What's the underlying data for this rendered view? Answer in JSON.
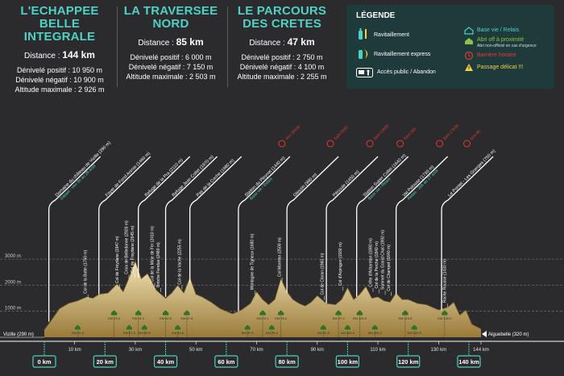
{
  "races": [
    {
      "title_1": "L'ECHAPPEE BELLE",
      "title_2": "INTEGRALE",
      "distance_label": "Distance :",
      "distance_value": "144 km",
      "d_pos": "Dénivelé positif : 10 950 m",
      "d_neg": "Dénivelé négatif : 10 900 m",
      "alt_max": "Altitude maximale : 2 926 m"
    },
    {
      "title_1": "LA TRAVERSEE",
      "title_2": "NORD",
      "distance_label": "Distance :",
      "distance_value": "85 km",
      "d_pos": "Dénivelé positif : 6 000 m",
      "d_neg": "Dénivelé négatif : 7 150 m",
      "alt_max": "Altitude maximale : 2 503 m"
    },
    {
      "title_1": "LE PARCOURS",
      "title_2": "DES CRETES",
      "distance_label": "Distance :",
      "distance_value": "47 km",
      "d_pos": "Dénivelé positif : 2 750 m",
      "d_neg": "Dénivelé négatif : 4 100 m",
      "alt_max": "Altitude maximale : 2 255 m"
    }
  ],
  "legend": {
    "title": "LÉGENDE",
    "ravitaillement": "Ravitaillement",
    "ravitaillement_express": "Ravitaillement express",
    "acces": "Accès public / Abandon",
    "base_vie": "Base vie / Relais",
    "abri": "Abri off à proximité",
    "abri_note": "Abri non-officiel en cas d'urgence",
    "barriere": "Barrière horaire",
    "passage": "Passage délicat !!!",
    "colors": {
      "teal": "#4fd1c5",
      "green": "#8bc34a",
      "red": "#e53935",
      "yellow": "#f5d142"
    }
  },
  "chart_data": {
    "type": "area",
    "title": "",
    "xlabel": "",
    "ylabel": "",
    "xlim": [
      0,
      144
    ],
    "ylim": [
      0,
      3300
    ],
    "y_ticks": [
      {
        "v": 1000,
        "label": "1000 m"
      },
      {
        "v": 2000,
        "label": "2000 m"
      },
      {
        "v": 3000,
        "label": "3000 m"
      }
    ],
    "x_ticks": [
      {
        "v": 10,
        "label": "10 km"
      },
      {
        "v": 30,
        "label": "30 km"
      },
      {
        "v": 50,
        "label": "50 km"
      },
      {
        "v": 70,
        "label": "70 km"
      },
      {
        "v": 90,
        "label": "90 km"
      },
      {
        "v": 110,
        "label": "110 km"
      },
      {
        "v": 130,
        "label": "130 km"
      },
      {
        "v": 144,
        "label": "144 km"
      }
    ],
    "km_markers": [
      {
        "v": 0,
        "label": "0 km"
      },
      {
        "v": 20,
        "label": "20 km"
      },
      {
        "v": 40,
        "label": "40 km"
      },
      {
        "v": 60,
        "label": "60 km"
      },
      {
        "v": 80,
        "label": "80 km"
      },
      {
        "v": 100,
        "label": "100 km"
      },
      {
        "v": 120,
        "label": "120 km"
      },
      {
        "v": 140,
        "label": "140 km"
      }
    ],
    "start_label": "Vizille (290 m)",
    "end_label": "Aiguebelle (320 m)",
    "profile": {
      "x": [
        0,
        2,
        5,
        8,
        11,
        14,
        16,
        18,
        21,
        24,
        26,
        28,
        30,
        32,
        34,
        37,
        40,
        42,
        44,
        46,
        48,
        50,
        52,
        55,
        58,
        62,
        65,
        68,
        70,
        72,
        74,
        76,
        78,
        80,
        82,
        84,
        86,
        88,
        90,
        93,
        96,
        98,
        100,
        102,
        104,
        106,
        108,
        110,
        112,
        114,
        116,
        118,
        120,
        123,
        126,
        130,
        133,
        135,
        137,
        139,
        141,
        143,
        144
      ],
      "y": [
        290,
        600,
        1100,
        1300,
        1400,
        1550,
        1500,
        1650,
        1700,
        2050,
        1750,
        2300,
        2926,
        2250,
        2450,
        1800,
        1500,
        1700,
        2000,
        1700,
        2300,
        1650,
        1550,
        1350,
        1100,
        900,
        1050,
        1300,
        1750,
        1450,
        1250,
        1450,
        2250,
        1750,
        1450,
        1300,
        1200,
        1350,
        1600,
        1300,
        1250,
        1450,
        1900,
        1450,
        1650,
        1950,
        1500,
        1550,
        1400,
        1350,
        1700,
        1450,
        1450,
        1300,
        1250,
        1050,
        1150,
        1350,
        850,
        1050,
        500,
        380,
        320
      ]
    },
    "waypoints": [
      {
        "x": 1.5,
        "y": 600,
        "label": "Domaine du château de Vizille",
        "alt": "(290 m)",
        "sub": "Départ : Ven 5h au 28 août",
        "sub_color": "#4fd1c5"
      },
      {
        "x": 18,
        "y": 1650,
        "label": "Foyer de Fond Arimie",
        "alt": "(1460 m)"
      },
      {
        "x": 31,
        "y": 2300,
        "label": "Refuge de la Pra",
        "alt": "(2110 m)"
      },
      {
        "x": 40,
        "y": 1550,
        "label": "Refuge Jean Collet",
        "alt": "(1970 m)"
      },
      {
        "x": 48,
        "y": 2100,
        "label": "Pas de la Coche",
        "alt": "(1980 m)"
      },
      {
        "x": 64,
        "y": 1000,
        "label": "Station du Pleynet",
        "alt": "(1440 m)",
        "sub": "Base vie / Relais",
        "sub_color": "#4fd1c5"
      },
      {
        "x": 80,
        "y": 1700,
        "label": "Gleyzin",
        "alt": "(990 m)"
      },
      {
        "x": 93,
        "y": 1300,
        "label": "Périoule",
        "alt": "(1450 m)"
      },
      {
        "x": 103,
        "y": 1550,
        "label": "Station Super Collet",
        "alt": "(1640 m)",
        "sub": "Base vie / Relais",
        "sub_color": "#4fd1c5"
      },
      {
        "x": 116,
        "y": 1650,
        "label": "Val Pelouse",
        "alt": "(1736 m)",
        "sub": "Relais : 26h au 27 août",
        "sub_color": "#4fd1c5"
      },
      {
        "x": 131,
        "y": 1050,
        "label": "Le Pontet - Les Granges",
        "alt": "(750 m)"
      }
    ],
    "vertical_labels": [
      {
        "x": 14,
        "y": 1550,
        "label": "Col de la Botte (1750 m)"
      },
      {
        "x": 24.5,
        "y": 1950,
        "label": "Col de Freydane (1947 m)"
      },
      {
        "x": 27.5,
        "y": 2300,
        "label": "Croix de Belledonne (2926 m)"
      },
      {
        "x": 29.5,
        "y": 2350,
        "label": "Col de Freydane (2645 m)"
      },
      {
        "x": 36,
        "y": 2000,
        "label": "Col de la Mine de Fer (2410 m)"
      },
      {
        "x": 38,
        "y": 1800,
        "label": "Brèche Fendue (2480 m)"
      },
      {
        "x": 45,
        "y": 1900,
        "label": "Col de la Vache (2255 m)"
      },
      {
        "x": 69,
        "y": 1700,
        "label": "Montagne de Tigneux (1680 m)"
      },
      {
        "x": 78,
        "y": 2200,
        "label": "Col Moretan (2500 m)"
      },
      {
        "x": 92,
        "y": 1500,
        "label": "Col de Claran (1960 m)"
      },
      {
        "x": 98,
        "y": 1850,
        "label": "Col d'Arpingon (1930 m)"
      },
      {
        "x": 108,
        "y": 1800,
        "label": "Crête d'Arbaretan (1880 m)"
      },
      {
        "x": 110,
        "y": 1750,
        "label": "Col de la Perche (1840 m)"
      },
      {
        "x": 112,
        "y": 1700,
        "label": "Sommet du Grand Chat (1992 m)"
      },
      {
        "x": 114,
        "y": 1650,
        "label": "Col de Champet (1640 m)"
      },
      {
        "x": 132.5,
        "y": 1200,
        "label": "Roche Rousse (1430 m)"
      }
    ],
    "barrier_labels": [
      {
        "x": 64,
        "label": "Ven 20h30"
      },
      {
        "x": 80,
        "label": "Sam 0h30"
      },
      {
        "x": 93,
        "label": "Sam 13h30"
      },
      {
        "x": 103,
        "label": "Sam 16h"
      },
      {
        "x": 116,
        "label": "Sam 17h30"
      },
      {
        "x": 125,
        "label": "Dim 8h"
      }
    ],
    "shelters": [
      {
        "x": 11,
        "label": "KM 10.5"
      },
      {
        "x": 23,
        "label": "KM 23.4"
      },
      {
        "x": 28,
        "label": "KM 27.5"
      },
      {
        "x": 31,
        "label": "KM 31.2"
      },
      {
        "x": 33,
        "label": "KM 33.8"
      },
      {
        "x": 40,
        "label": "KM 40.5"
      },
      {
        "x": 44,
        "label": "KM 44.0"
      },
      {
        "x": 47,
        "label": "KM 47.8"
      },
      {
        "x": 67,
        "label": "KM 67.5"
      },
      {
        "x": 72,
        "label": "KM 72.1"
      },
      {
        "x": 75,
        "label": "KM 75.4"
      },
      {
        "x": 78,
        "label": "KM 78.2"
      },
      {
        "x": 92,
        "label": "KM 92.8"
      },
      {
        "x": 97,
        "label": "KM 97.0"
      },
      {
        "x": 100,
        "label": "KM 100.4"
      },
      {
        "x": 104,
        "label": "KM 104.6"
      },
      {
        "x": 109,
        "label": "KM 109.2"
      },
      {
        "x": 119,
        "label": "KM 119.8"
      },
      {
        "x": 122,
        "label": "KM 122.5"
      },
      {
        "x": 132,
        "label": "KM 132.0"
      }
    ],
    "colors": {
      "fill_top": "#f2e4b5",
      "fill_bottom": "#9a7a3a",
      "grid": "#6a6a6c",
      "axis": "#ffffff",
      "accent": "#4fd1c5"
    }
  }
}
